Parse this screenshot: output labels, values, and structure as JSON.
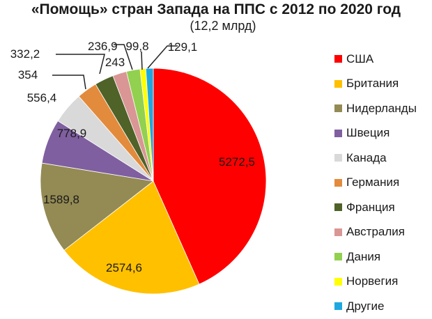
{
  "chart_data": {
    "type": "pie",
    "title": "«Помощь» стран Запада на ППС с 2012 по 2020 год",
    "subtitle": "(12,2 млрд)",
    "legend_position": "right",
    "slices": [
      {
        "name": "США",
        "value": 5272.5,
        "label": "5272,5",
        "color": "#ff0000"
      },
      {
        "name": "Британия",
        "value": 2574.6,
        "label": "2574,6",
        "color": "#ffc000"
      },
      {
        "name": "Нидерланды",
        "value": 1589.8,
        "label": "1589,8",
        "color": "#948a54"
      },
      {
        "name": "Швеция",
        "value": 778.9,
        "label": "778,9",
        "color": "#7f5fa0"
      },
      {
        "name": "Канада",
        "value": 556.4,
        "label": "556,4",
        "color": "#d9d9d9"
      },
      {
        "name": "Германия",
        "value": 354,
        "label": "354",
        "color": "#e38b3c"
      },
      {
        "name": "Франция",
        "value": 332.2,
        "label": "332,2",
        "color": "#4f6228"
      },
      {
        "name": "Австралия",
        "value": 243,
        "label": "243",
        "color": "#d99694"
      },
      {
        "name": "Дания",
        "value": 236.9,
        "label": "236,9",
        "color": "#92d050"
      },
      {
        "name": "Норвегия",
        "value": 99.8,
        "label": "99,8",
        "color": "#ffff00"
      },
      {
        "name": "Другие",
        "value": 129.1,
        "label": "129,1",
        "color": "#1fa8e0"
      }
    ]
  }
}
